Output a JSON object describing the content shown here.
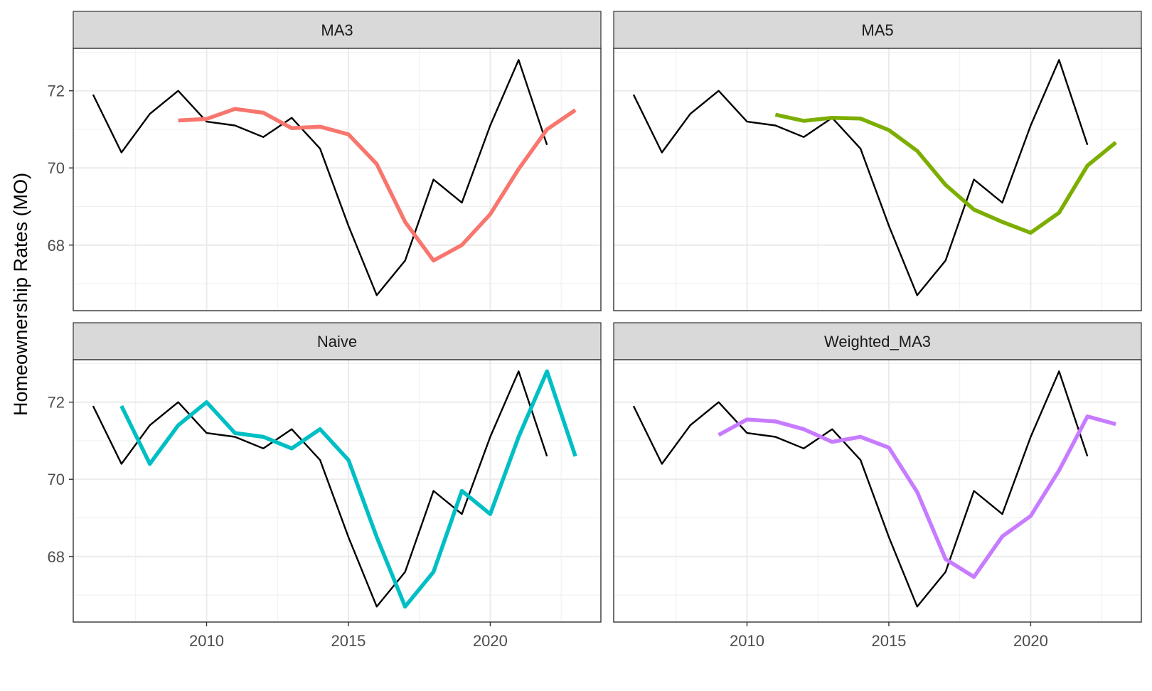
{
  "chart_data": {
    "type": "line",
    "layout": "facet-grid-2x2",
    "ylabel": "Homeownership Rates (MO)",
    "xlabel": "",
    "xlim": [
      2005.3,
      2023.9
    ],
    "ylim": [
      66.3,
      73.1
    ],
    "x_ticks": [
      2010,
      2015,
      2020
    ],
    "y_ticks": [
      68,
      70,
      72
    ],
    "grid": true,
    "actual": {
      "x": [
        2006,
        2007,
        2008,
        2009,
        2010,
        2011,
        2012,
        2013,
        2014,
        2015,
        2016,
        2017,
        2018,
        2019,
        2020,
        2021,
        2022
      ],
      "values": [
        71.9,
        70.4,
        71.4,
        72.0,
        71.2,
        71.1,
        70.8,
        71.3,
        70.5,
        68.5,
        66.7,
        67.6,
        69.7,
        69.1,
        71.1,
        72.8,
        70.6
      ]
    },
    "panels": [
      {
        "title": "MA3",
        "color": "#F8766D",
        "x": [
          2009,
          2010,
          2011,
          2012,
          2013,
          2014,
          2015,
          2016,
          2017,
          2018,
          2019,
          2020,
          2021,
          2022,
          2023
        ],
        "values": [
          71.23,
          71.27,
          71.53,
          71.43,
          71.03,
          71.07,
          70.87,
          70.1,
          68.6,
          67.6,
          68.0,
          68.8,
          69.97,
          71.0,
          71.5
        ]
      },
      {
        "title": "MA5",
        "color": "#7CAE00",
        "x": [
          2011,
          2012,
          2013,
          2014,
          2015,
          2016,
          2017,
          2018,
          2019,
          2020,
          2021,
          2022,
          2023
        ],
        "values": [
          71.38,
          71.22,
          71.3,
          71.28,
          70.98,
          70.44,
          69.56,
          68.92,
          68.6,
          68.32,
          68.84,
          70.06,
          70.66
        ]
      },
      {
        "title": "Naive",
        "color": "#00BFC4",
        "x": [
          2007,
          2008,
          2009,
          2010,
          2011,
          2012,
          2013,
          2014,
          2015,
          2016,
          2017,
          2018,
          2019,
          2020,
          2021,
          2022,
          2023
        ],
        "values": [
          71.9,
          70.4,
          71.4,
          72.0,
          71.2,
          71.1,
          70.8,
          71.3,
          70.5,
          68.5,
          66.7,
          67.6,
          69.7,
          69.1,
          71.1,
          72.8,
          70.6
        ]
      },
      {
        "title": "Weighted_MA3",
        "color": "#C77CFF",
        "x": [
          2009,
          2010,
          2011,
          2012,
          2013,
          2014,
          2015,
          2016,
          2017,
          2018,
          2019,
          2020,
          2021,
          2022,
          2023
        ],
        "values": [
          71.15,
          71.55,
          71.5,
          71.3,
          70.97,
          71.1,
          70.82,
          69.67,
          67.93,
          67.47,
          68.52,
          69.05,
          70.23,
          71.63,
          71.43
        ]
      }
    ]
  }
}
